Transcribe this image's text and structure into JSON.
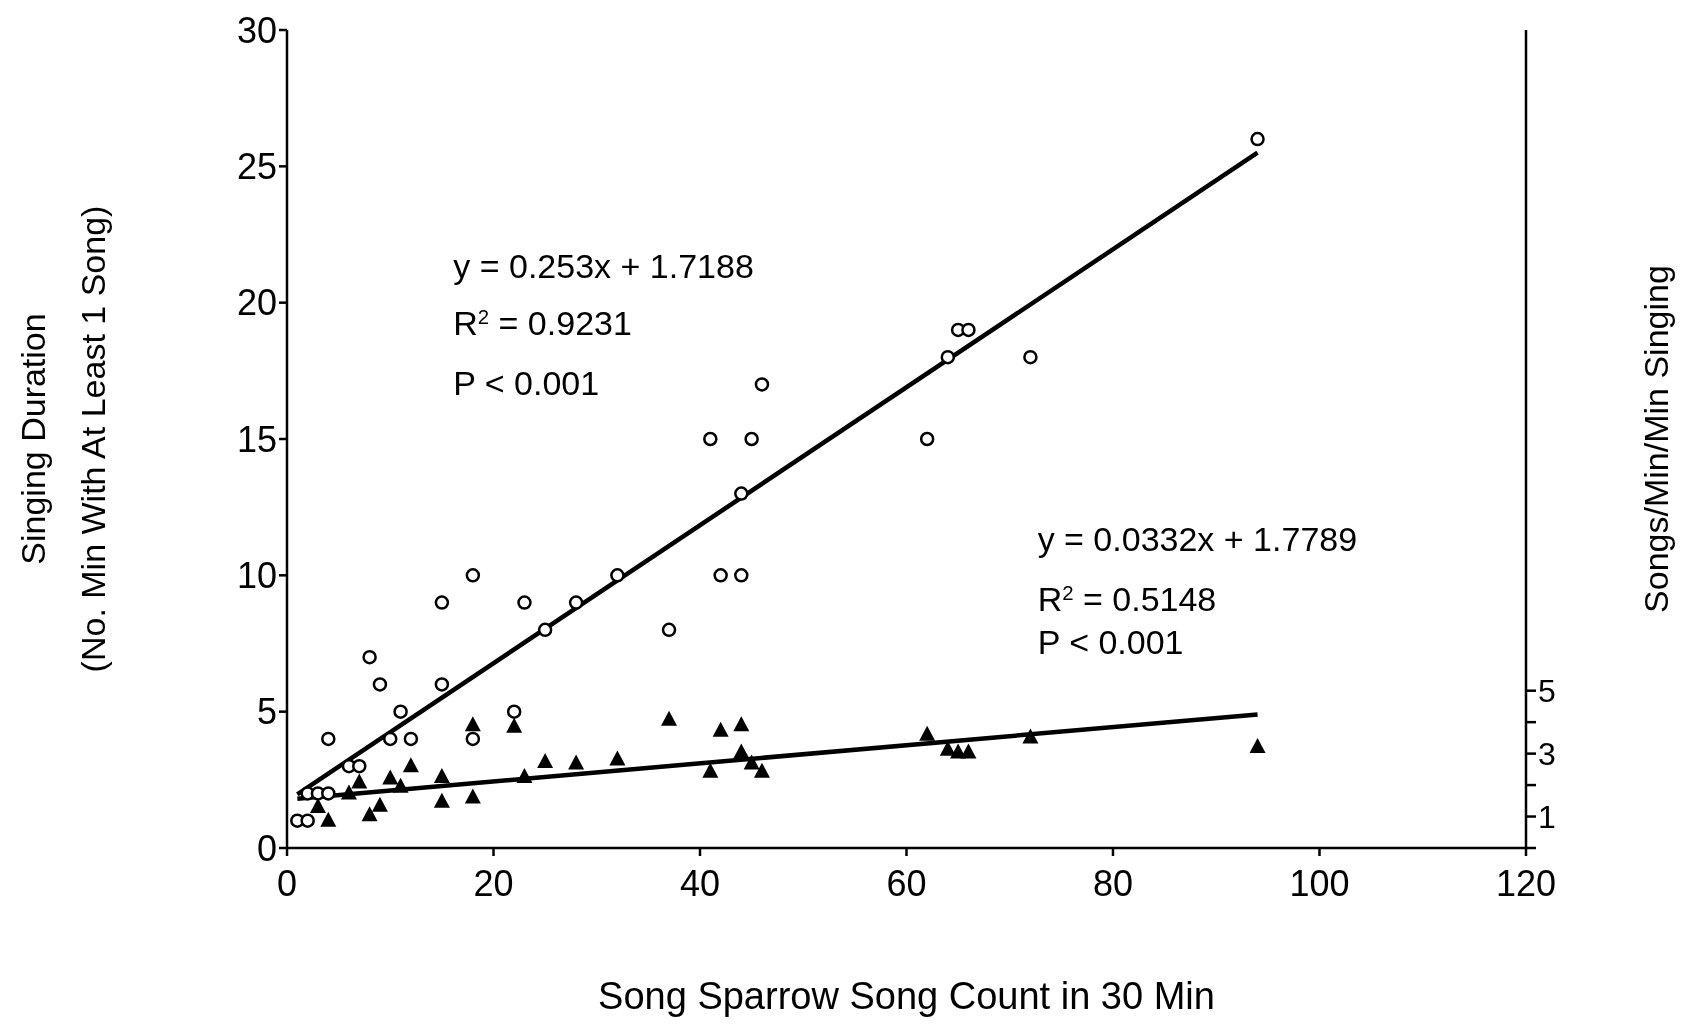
{
  "chart_data": {
    "type": "scatter",
    "xlabel": "Song Sparrow Song Count in 30 Min",
    "ylabel": "Singing Duration\n(No. Min With At Least 1 Song)",
    "y2label": "Songs/Min/Min Singing",
    "xlim": [
      0,
      120
    ],
    "xticks": [
      0,
      20,
      40,
      60,
      80,
      100,
      120
    ],
    "ylim": [
      0,
      30
    ],
    "yticks": [
      0,
      5,
      10,
      15,
      20,
      25,
      30
    ],
    "y2lim": [
      0,
      26
    ],
    "y2ticks": [
      {
        "value": 0,
        "label": null
      },
      1,
      {
        "value": 2,
        "label": null
      },
      3,
      {
        "value": 4,
        "label": null
      },
      5
    ],
    "series": [
      {
        "marker": "circle",
        "color": "#000000",
        "x": [
          1,
          2,
          2,
          3,
          4,
          4,
          6,
          7,
          8,
          9,
          10,
          11,
          12,
          15,
          15,
          18,
          18,
          22,
          23,
          25,
          28,
          32,
          37,
          41,
          42,
          44,
          44,
          45,
          46,
          62,
          64,
          65,
          66,
          72,
          94
        ],
        "values": [
          1,
          1,
          2,
          2,
          2,
          4,
          3,
          3,
          7,
          6,
          4,
          5,
          4,
          6,
          9,
          4,
          10,
          5,
          9,
          8,
          9,
          10,
          8,
          15,
          10,
          13,
          10,
          15,
          17,
          15,
          18,
          19,
          19,
          18,
          26
        ]
      },
      {
        "marker": "triangle",
        "color": "#000000",
        "x": [
          3,
          4,
          6,
          7,
          8,
          9,
          10,
          11,
          12,
          15,
          15,
          18,
          18,
          22,
          23,
          25,
          28,
          32,
          37,
          41,
          42,
          44,
          44,
          45,
          46,
          62,
          64,
          65,
          66,
          72,
          94
        ],
        "values": [
          1.5,
          1,
          2,
          2.4,
          1.2,
          1.55,
          2.55,
          2.25,
          3,
          2.6,
          1.7,
          4.5,
          1.85,
          4.45,
          2.6,
          3.15,
          3.1,
          3.25,
          4.7,
          2.8,
          4.3,
          4.5,
          3.5,
          3.1,
          2.8,
          4.15,
          3.6,
          3.5,
          3.5,
          4.05,
          3.7
        ]
      },
      {
        "type": "line",
        "marker": "none",
        "color": "#000000",
        "x": [
          1,
          94
        ],
        "values": [
          1.97,
          25.5
        ]
      },
      {
        "type": "line",
        "marker": "none",
        "color": "#000000",
        "x": [
          1,
          94
        ],
        "values": [
          1.81,
          4.9
        ]
      }
    ],
    "annotations": [
      "y = 0.253x + 1.7188",
      "R$^{2}$ = 0.9231",
      "P < 0.001",
      "y = 0.0332x + 1.7789",
      "R$^{2}$ = 0.5148",
      "P < 0.001"
    ]
  }
}
